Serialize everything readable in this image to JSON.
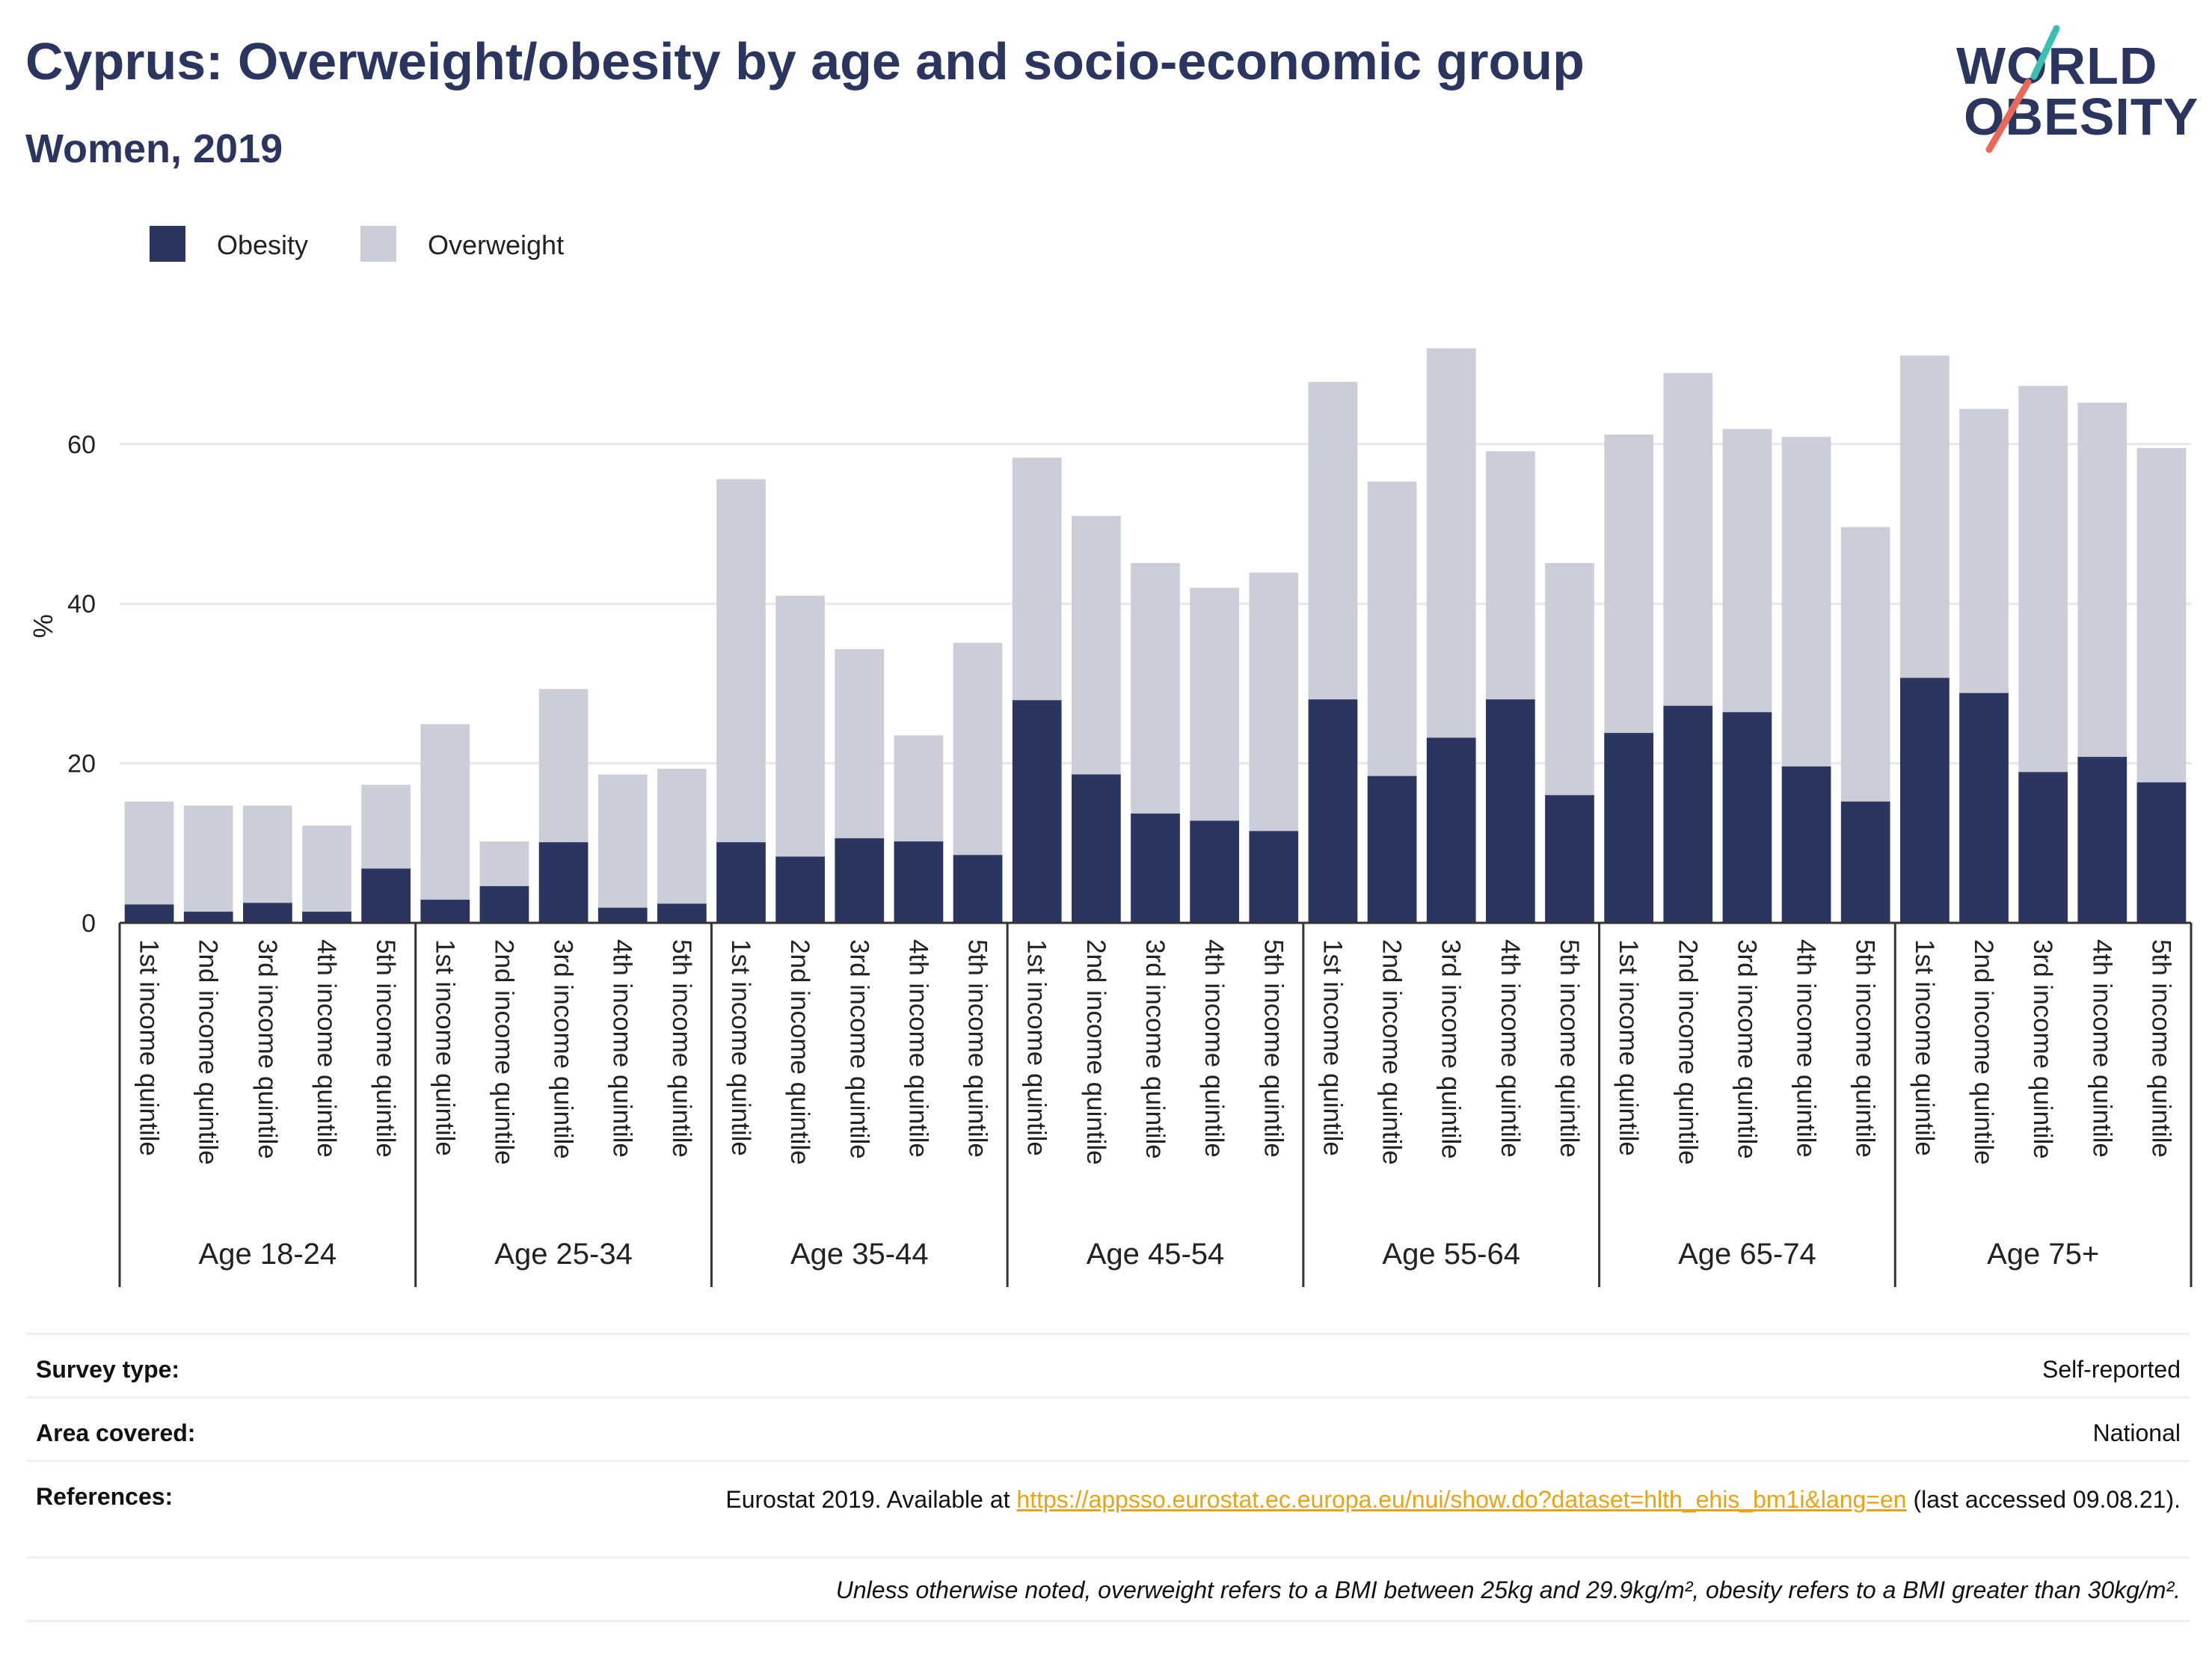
{
  "header": {
    "title": "Cyprus: Overweight/obesity by age and socio-economic group",
    "subtitle": "Women, 2019"
  },
  "logo": {
    "line1": "WORLD",
    "line2": "OBESITY",
    "accent_teal": "#3bbfb3",
    "accent_red": "#e8685a"
  },
  "colors": {
    "obesity": "#2a3560",
    "overweight": "#cbcdd9",
    "axis": "#333333",
    "grid": "#e6e6ec"
  },
  "chart_data": {
    "type": "bar",
    "stacked": false,
    "overlay": true,
    "ylabel": "%",
    "ylim": [
      0,
      75
    ],
    "yticks": [
      0,
      20,
      40,
      60
    ],
    "grid": true,
    "legend_position": "top-left",
    "groups": [
      "Age 18-24",
      "Age 25-34",
      "Age 35-44",
      "Age 45-54",
      "Age 55-64",
      "Age 65-74",
      "Age 75+"
    ],
    "subcategories": [
      "1st income quintile",
      "2nd income quintile",
      "3rd income quintile",
      "4th income quintile",
      "5th income quintile"
    ],
    "series": [
      {
        "name": "Obesity",
        "values": [
          [
            2.3,
            1.4,
            2.5,
            1.4,
            6.8
          ],
          [
            2.9,
            4.6,
            10.1,
            1.9,
            2.4
          ],
          [
            10.1,
            8.3,
            10.6,
            10.2,
            8.5
          ],
          [
            27.9,
            18.6,
            13.7,
            12.8,
            11.5
          ],
          [
            28.0,
            18.4,
            23.2,
            28.0,
            16.0
          ],
          [
            23.8,
            27.2,
            26.4,
            19.6,
            15.2
          ],
          [
            30.7,
            28.8,
            18.9,
            20.8,
            17.6
          ]
        ]
      },
      {
        "name": "Overweight",
        "values": [
          [
            15.2,
            14.7,
            14.7,
            12.2,
            17.3
          ],
          [
            24.9,
            10.2,
            29.3,
            18.6,
            19.3
          ],
          [
            55.6,
            41.0,
            34.3,
            23.5,
            35.1
          ],
          [
            58.3,
            51.0,
            45.1,
            42.0,
            43.9
          ],
          [
            67.8,
            55.3,
            72.0,
            59.1,
            45.1
          ],
          [
            61.2,
            68.9,
            61.9,
            60.9,
            49.6
          ],
          [
            71.1,
            64.4,
            67.3,
            65.2,
            59.5
          ]
        ]
      }
    ]
  },
  "info": {
    "survey_type_label": "Survey type:",
    "survey_type_value": "Self-reported",
    "area_label": "Area covered:",
    "area_value": "National",
    "references_label": "References:",
    "references_prefix": "Eurostat 2019. Available at ",
    "references_link": "https://appsso.eurostat.ec.europa.eu/nui/show.do?dataset=hlth_ehis_bm1i&lang=en",
    "references_suffix": " (last accessed 09.08.21).",
    "footnote": "Unless otherwise noted, overweight refers to a BMI between 25kg and 29.9kg/m², obesity refers to a BMI greater than 30kg/m²."
  }
}
